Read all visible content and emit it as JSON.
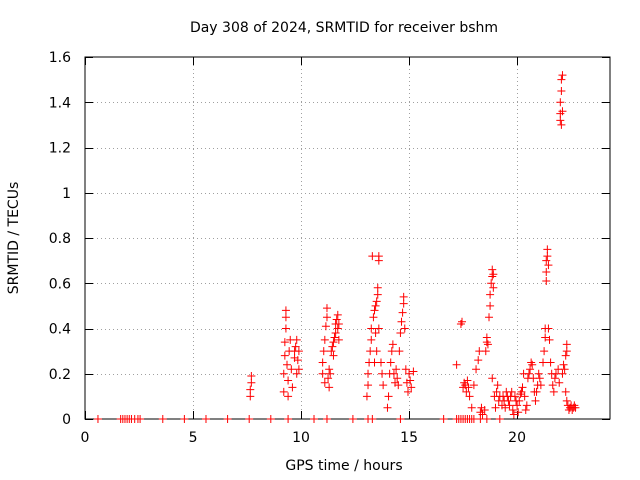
{
  "chart_data": {
    "type": "scatter",
    "title": "Day 308 of 2024, SRMTID for receiver bshm",
    "xlabel": "GPS time / hours",
    "ylabel": "SRMTID / TECUs",
    "xlim": [
      0,
      24.3
    ],
    "ylim": [
      0,
      1.6
    ],
    "xticks": [
      0,
      5,
      10,
      15,
      20
    ],
    "yticks": [
      0,
      0.2,
      0.4,
      0.6,
      0.8,
      1,
      1.2,
      1.4,
      1.6
    ],
    "xtick_labels": [
      "0",
      "5",
      "10",
      "15",
      "20"
    ],
    "ytick_labels": [
      "0",
      "0.2",
      "0.4",
      "0.6",
      "0.8",
      "1",
      "1.2",
      "1.4",
      "1.6"
    ],
    "grid": true,
    "marker": "+",
    "series": [
      {
        "name": "SRMTID",
        "color": "#ff0000",
        "points": [
          [
            0.6,
            0
          ],
          [
            1.65,
            0
          ],
          [
            1.75,
            0
          ],
          [
            1.85,
            0
          ],
          [
            1.95,
            0
          ],
          [
            2.05,
            0
          ],
          [
            2.15,
            0
          ],
          [
            2.3,
            0
          ],
          [
            2.45,
            0
          ],
          [
            2.55,
            0
          ],
          [
            3.6,
            0
          ],
          [
            4.6,
            0
          ],
          [
            5.6,
            0
          ],
          [
            6.6,
            0
          ],
          [
            7.6,
            0
          ],
          [
            8.6,
            0
          ],
          [
            9.4,
            0
          ],
          [
            10.6,
            0
          ],
          [
            11.2,
            0
          ],
          [
            12.4,
            0
          ],
          [
            13.1,
            0
          ],
          [
            13.3,
            0
          ],
          [
            14.6,
            0
          ],
          [
            16.6,
            0
          ],
          [
            17.2,
            0
          ],
          [
            17.3,
            0
          ],
          [
            17.4,
            0
          ],
          [
            17.5,
            0
          ],
          [
            17.6,
            0
          ],
          [
            17.7,
            0
          ],
          [
            17.8,
            0
          ],
          [
            17.9,
            0
          ],
          [
            18.0,
            0
          ],
          [
            18.3,
            0
          ],
          [
            18.6,
            0
          ],
          [
            19.2,
            0
          ],
          [
            7.65,
            0.1
          ],
          [
            7.65,
            0.13
          ],
          [
            7.7,
            0.16
          ],
          [
            7.7,
            0.19
          ],
          [
            9.2,
            0.12
          ],
          [
            9.2,
            0.2
          ],
          [
            9.25,
            0.28
          ],
          [
            9.25,
            0.34
          ],
          [
            9.3,
            0.4
          ],
          [
            9.3,
            0.45
          ],
          [
            9.3,
            0.48
          ],
          [
            9.35,
            0.24
          ],
          [
            9.4,
            0.17
          ],
          [
            9.4,
            0.1
          ],
          [
            9.45,
            0.3
          ],
          [
            9.5,
            0.35
          ],
          [
            9.55,
            0.22
          ],
          [
            9.6,
            0.14
          ],
          [
            9.7,
            0.3
          ],
          [
            9.7,
            0.27
          ],
          [
            9.75,
            0.32
          ],
          [
            9.8,
            0.35
          ],
          [
            9.8,
            0.2
          ],
          [
            9.85,
            0.26
          ],
          [
            9.9,
            0.3
          ],
          [
            9.9,
            0.22
          ],
          [
            11.0,
            0.25
          ],
          [
            11.0,
            0.2
          ],
          [
            11.05,
            0.3
          ],
          [
            11.1,
            0.35
          ],
          [
            11.1,
            0.16
          ],
          [
            11.15,
            0.41
          ],
          [
            11.2,
            0.45
          ],
          [
            11.2,
            0.49
          ],
          [
            11.25,
            0.18
          ],
          [
            11.3,
            0.14
          ],
          [
            11.3,
            0.22
          ],
          [
            11.35,
            0.2
          ],
          [
            11.4,
            0.3
          ],
          [
            11.45,
            0.32
          ],
          [
            11.5,
            0.34
          ],
          [
            11.5,
            0.28
          ],
          [
            11.55,
            0.36
          ],
          [
            11.6,
            0.38
          ],
          [
            11.6,
            0.42
          ],
          [
            11.65,
            0.44
          ],
          [
            11.7,
            0.46
          ],
          [
            11.7,
            0.4
          ],
          [
            11.75,
            0.42
          ],
          [
            11.75,
            0.35
          ],
          [
            13.05,
            0.1
          ],
          [
            13.1,
            0.15
          ],
          [
            13.1,
            0.2
          ],
          [
            13.15,
            0.25
          ],
          [
            13.2,
            0.3
          ],
          [
            13.25,
            0.35
          ],
          [
            13.25,
            0.4
          ],
          [
            13.3,
            0.72
          ],
          [
            13.35,
            0.45
          ],
          [
            13.4,
            0.48
          ],
          [
            13.45,
            0.5
          ],
          [
            13.5,
            0.52
          ],
          [
            13.55,
            0.55
          ],
          [
            13.55,
            0.58
          ],
          [
            13.6,
            0.7
          ],
          [
            13.6,
            0.72
          ],
          [
            13.6,
            0.4
          ],
          [
            13.45,
            0.38
          ],
          [
            13.5,
            0.3
          ],
          [
            13.4,
            0.25
          ],
          [
            13.7,
            0.25
          ],
          [
            13.75,
            0.2
          ],
          [
            13.8,
            0.15
          ],
          [
            14.0,
            0.05
          ],
          [
            14.05,
            0.1
          ],
          [
            14.1,
            0.2
          ],
          [
            14.15,
            0.25
          ],
          [
            14.2,
            0.3
          ],
          [
            14.25,
            0.33
          ],
          [
            14.3,
            0.2
          ],
          [
            14.35,
            0.16
          ],
          [
            14.4,
            0.22
          ],
          [
            14.45,
            0.18
          ],
          [
            14.5,
            0.15
          ],
          [
            14.55,
            0.3
          ],
          [
            14.6,
            0.38
          ],
          [
            14.65,
            0.43
          ],
          [
            14.7,
            0.47
          ],
          [
            14.75,
            0.51
          ],
          [
            14.75,
            0.54
          ],
          [
            14.8,
            0.4
          ],
          [
            14.85,
            0.22
          ],
          [
            14.9,
            0.16
          ],
          [
            14.95,
            0.12
          ],
          [
            15.0,
            0.2
          ],
          [
            15.05,
            0.17
          ],
          [
            15.1,
            0.14
          ],
          [
            15.2,
            0.21
          ],
          [
            17.2,
            0.24
          ],
          [
            17.4,
            0.42
          ],
          [
            17.45,
            0.43
          ],
          [
            17.5,
            0.14
          ],
          [
            17.55,
            0.16
          ],
          [
            17.6,
            0.15
          ],
          [
            17.65,
            0.12
          ],
          [
            17.7,
            0.17
          ],
          [
            17.75,
            0.14
          ],
          [
            17.8,
            0.1
          ],
          [
            17.9,
            0.05
          ],
          [
            18.0,
            0.15
          ],
          [
            18.1,
            0.22
          ],
          [
            18.2,
            0.26
          ],
          [
            18.25,
            0.3
          ],
          [
            18.3,
            0.03
          ],
          [
            18.35,
            0.05
          ],
          [
            18.4,
            0.02
          ],
          [
            18.5,
            0.04
          ],
          [
            18.55,
            0.3
          ],
          [
            18.6,
            0.34
          ],
          [
            18.6,
            0.36
          ],
          [
            18.65,
            0.33
          ],
          [
            18.7,
            0.45
          ],
          [
            18.75,
            0.5
          ],
          [
            18.75,
            0.55
          ],
          [
            18.8,
            0.6
          ],
          [
            18.85,
            0.63
          ],
          [
            18.85,
            0.66
          ],
          [
            18.9,
            0.64
          ],
          [
            18.9,
            0.58
          ],
          [
            18.85,
            0.18
          ],
          [
            18.95,
            0.1
          ],
          [
            19.0,
            0.05
          ],
          [
            19.05,
            0.12
          ],
          [
            19.1,
            0.15
          ],
          [
            19.15,
            0.08
          ],
          [
            19.2,
            0.1
          ],
          [
            19.3,
            0.06
          ],
          [
            19.35,
            0.1
          ],
          [
            19.4,
            0.08
          ],
          [
            19.45,
            0.05
          ],
          [
            19.5,
            0.12
          ],
          [
            19.55,
            0.1
          ],
          [
            19.6,
            0.08
          ],
          [
            19.65,
            0.06
          ],
          [
            19.7,
            0.1
          ],
          [
            19.75,
            0.12
          ],
          [
            19.8,
            0.04
          ],
          [
            19.85,
            0.02
          ],
          [
            19.9,
            0.1
          ],
          [
            19.95,
            0.08
          ],
          [
            20.0,
            0.06
          ],
          [
            20.05,
            0.03
          ],
          [
            20.1,
            0.08
          ],
          [
            20.15,
            0.11
          ],
          [
            20.2,
            0.12
          ],
          [
            20.25,
            0.14
          ],
          [
            20.3,
            0.2
          ],
          [
            20.35,
            0.1
          ],
          [
            20.4,
            0.04
          ],
          [
            20.45,
            0.06
          ],
          [
            20.5,
            0.18
          ],
          [
            20.55,
            0.2
          ],
          [
            20.6,
            0.22
          ],
          [
            20.65,
            0.25
          ],
          [
            20.7,
            0.24
          ],
          [
            20.75,
            0.18
          ],
          [
            20.8,
            0.12
          ],
          [
            20.85,
            0.08
          ],
          [
            20.9,
            0.12
          ],
          [
            20.95,
            0.15
          ],
          [
            21.0,
            0.2
          ],
          [
            21.05,
            0.18
          ],
          [
            21.1,
            0.15
          ],
          [
            21.2,
            0.25
          ],
          [
            21.25,
            0.3
          ],
          [
            21.3,
            0.36
          ],
          [
            21.3,
            0.4
          ],
          [
            21.35,
            0.61
          ],
          [
            21.35,
            0.65
          ],
          [
            21.35,
            0.7
          ],
          [
            21.4,
            0.72
          ],
          [
            21.4,
            0.75
          ],
          [
            21.45,
            0.68
          ],
          [
            21.45,
            0.4
          ],
          [
            21.5,
            0.35
          ],
          [
            21.55,
            0.25
          ],
          [
            21.6,
            0.2
          ],
          [
            21.65,
            0.15
          ],
          [
            21.7,
            0.12
          ],
          [
            21.75,
            0.18
          ],
          [
            21.8,
            0.2
          ],
          [
            21.9,
            0.22
          ],
          [
            21.95,
            0.16
          ],
          [
            22.0,
            1.32
          ],
          [
            22.0,
            1.35
          ],
          [
            22.0,
            1.4
          ],
          [
            22.05,
            1.45
          ],
          [
            22.05,
            1.5
          ],
          [
            22.1,
            1.52
          ],
          [
            22.1,
            1.36
          ],
          [
            22.05,
            1.3
          ],
          [
            22.1,
            0.2
          ],
          [
            22.15,
            0.24
          ],
          [
            22.2,
            0.22
          ],
          [
            22.25,
            0.28
          ],
          [
            22.3,
            0.3
          ],
          [
            22.3,
            0.33
          ],
          [
            22.25,
            0.12
          ],
          [
            22.3,
            0.08
          ],
          [
            22.35,
            0.06
          ],
          [
            22.4,
            0.04
          ],
          [
            22.45,
            0.05
          ],
          [
            22.5,
            0.06
          ],
          [
            22.55,
            0.04
          ],
          [
            22.6,
            0.05
          ],
          [
            22.65,
            0.06
          ],
          [
            22.7,
            0.05
          ]
        ]
      }
    ]
  }
}
